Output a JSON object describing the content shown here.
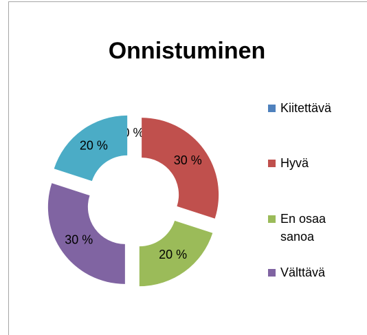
{
  "chart_data": {
    "type": "donut",
    "title": "Onnistuminen",
    "categories": [
      "Kiitettävä",
      "Hyvä",
      "En osaa sanoa",
      "Välttävä",
      null
    ],
    "values": [
      0,
      30,
      20,
      30,
      20
    ],
    "value_labels": [
      "0 %",
      "30 %",
      "20 %",
      "30 %",
      "20 %"
    ],
    "colors": [
      "#4f81bd",
      "#c0504d",
      "#9bbb59",
      "#8064a2",
      "#4bacc6"
    ],
    "legend": "right"
  }
}
